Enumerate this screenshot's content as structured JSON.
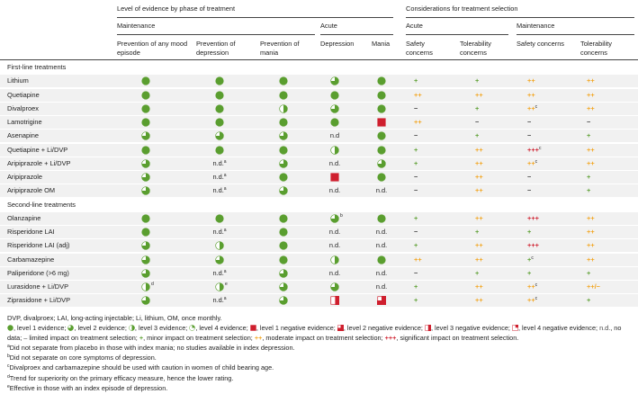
{
  "header": {
    "group_left": "Level of evidence by phase of treatment",
    "group_right": "Considerations for treatment selection",
    "sub_left": [
      "Maintenance",
      "Acute"
    ],
    "sub_right": [
      "Acute",
      "Maintenance"
    ],
    "columns": [
      "Prevention of any mood episode",
      "Prevention of depression",
      "Prevention of mania",
      "Depression",
      "Mania",
      "Safety concerns",
      "Tolerability concerns",
      "Safety concerns",
      "Tolerability concerns"
    ]
  },
  "sections": [
    {
      "title": "First-line treatments",
      "rows": [
        {
          "name": "Lithium",
          "cells": [
            1,
            1,
            1,
            2,
            1,
            "+",
            "+",
            "++",
            "++"
          ]
        },
        {
          "name": "Quetiapine",
          "cells": [
            1,
            1,
            1,
            1,
            1,
            "++",
            "++",
            "++",
            "++"
          ]
        },
        {
          "name": "Divalproex",
          "cells": [
            1,
            1,
            3,
            2,
            1,
            "−",
            "+",
            {
              "text": "++",
              "sup": "c"
            },
            "++"
          ]
        },
        {
          "name": "Lamotrigine",
          "cells": [
            1,
            1,
            1,
            1,
            -1,
            "++",
            "−",
            "−",
            "−"
          ]
        },
        {
          "name": "Asenapine",
          "cells": [
            2,
            2,
            2,
            "n.d",
            1,
            "−",
            "+",
            "−",
            "+"
          ]
        },
        {
          "name": "Quetiapine + Li/DVP",
          "cells": [
            1,
            1,
            1,
            3,
            1,
            "+",
            "++",
            {
              "text": "+++",
              "sup": "c"
            },
            "++"
          ]
        },
        {
          "name": "Aripiprazole + Li/DVP",
          "cells": [
            2,
            {
              "text": "n.d.",
              "sup": "a"
            },
            2,
            "n.d.",
            2,
            "+",
            "++",
            {
              "text": "++",
              "sup": "c"
            },
            "++"
          ]
        },
        {
          "name": "Aripiprazole",
          "cells": [
            2,
            {
              "text": "n.d.",
              "sup": "a"
            },
            1,
            -1,
            1,
            "−",
            "++",
            "−",
            "+"
          ]
        },
        {
          "name": "Aripiprazole OM",
          "cells": [
            2,
            {
              "text": "n.d.",
              "sup": "a"
            },
            2,
            "n.d.",
            "n.d.",
            "−",
            "++",
            "−",
            "+"
          ]
        }
      ]
    },
    {
      "title": "Second-line treatments",
      "rows": [
        {
          "name": "Olanzapine",
          "cells": [
            1,
            1,
            1,
            {
              "level": 2,
              "sup": "b"
            },
            1,
            "+",
            "++",
            "+++",
            "++"
          ]
        },
        {
          "name": "Risperidone LAI",
          "cells": [
            1,
            {
              "text": "n.d.",
              "sup": "a"
            },
            1,
            "n.d.",
            "n.d.",
            "−",
            "+",
            "+",
            "++"
          ]
        },
        {
          "name": "Risperidone LAI (adj)",
          "cells": [
            2,
            3,
            1,
            "n.d.",
            "n.d.",
            "+",
            "++",
            "+++",
            "++"
          ]
        },
        {
          "name": "Carbamazepine",
          "cells": [
            2,
            2,
            1,
            3,
            1,
            "++",
            "++",
            {
              "text": "+",
              "sup": "c"
            },
            "++"
          ]
        },
        {
          "name": "Paliperidone (>6 mg)",
          "cells": [
            2,
            {
              "text": "n.d.",
              "sup": "a"
            },
            2,
            "n.d.",
            "n.d.",
            "−",
            "+",
            "+",
            "+"
          ]
        },
        {
          "name": "Lurasidone + Li/DVP",
          "cells": [
            {
              "level": 3,
              "sup": "d"
            },
            {
              "level": 3,
              "sup": "e"
            },
            2,
            2,
            "n.d.",
            "+",
            "++",
            {
              "text": "++",
              "sup": "c"
            },
            "++/−"
          ]
        },
        {
          "name": "Ziprasidone + Li/DVP",
          "cells": [
            2,
            {
              "text": "n.d.",
              "sup": "a"
            },
            2,
            -3,
            -2,
            "+",
            "++",
            {
              "text": "++",
              "sup": "c"
            },
            "+"
          ]
        }
      ]
    }
  ],
  "notes": {
    "abbreviations": "DVP, divalproex; LAI, long-acting injectable; Li, lithium, OM, once monthly.",
    "legend": [
      {
        "level": 1,
        "text": ", level 1 evidence;"
      },
      {
        "level": 2,
        "text": ", level 2 evidence;"
      },
      {
        "level": 3,
        "text": ", level 3 evidence;"
      },
      {
        "level": 4,
        "text": ", level 4 evidence;"
      },
      {
        "level": -1,
        "text": ", level 1 negative evidence;"
      },
      {
        "level": -2,
        "text": ", level 2 negative evidence;"
      },
      {
        "level": -3,
        "text": ", level 3 negative evidence;"
      },
      {
        "level": -4,
        "text": ", level 4 negative evidence;"
      },
      {
        "symbol": "n.d.",
        "text": ", no data;"
      },
      {
        "symbol": "–",
        "text": " limited impact on treatment selection;"
      },
      {
        "symbol": "+",
        "text": ", minor impact on treatment selection;"
      },
      {
        "symbol": "++",
        "text": ", moderate impact on treatment selection;"
      },
      {
        "symbol": "+++",
        "text": ", significant impact on treatment selection."
      }
    ],
    "footnotes": [
      {
        "mark": "a",
        "text": "Did not separate from placebo in those with index mania; no studies available in index depression."
      },
      {
        "mark": "b",
        "text": "Did not separate on core symptoms of depression."
      },
      {
        "mark": "c",
        "text": "Divalproex and carbamazepine should be used with caution in women of child bearing age."
      },
      {
        "mark": "d",
        "text": "Trend for superiority on the primary efficacy measure, hence the lower rating."
      },
      {
        "mark": "e",
        "text": "Effective in those with an index episode of depression."
      }
    ]
  }
}
